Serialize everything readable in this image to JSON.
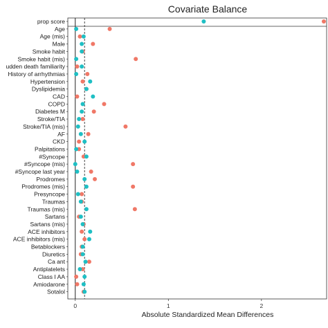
{
  "chart_data": {
    "type": "scatter",
    "title": "Covariate Balance",
    "xlabel": "Absolute Standardized Mean Differences",
    "ylabel": "",
    "xlim": [
      -0.08,
      2.7
    ],
    "x_ticks": [
      "0",
      "1",
      "2"
    ],
    "reference_lines": {
      "solid": 0,
      "dashed": 0.1
    },
    "colors": {
      "unadjusted": "#f07867",
      "adjusted": "#1fbfc4"
    },
    "categories": [
      "prop score",
      "Age",
      "Age (mis)",
      "Male",
      "Smoke habit",
      "Smoke habit (mis)",
      "udden death familiarity",
      "History of arrhythmias",
      "Hypertension",
      "Dyslipidemia",
      "CAD",
      "COPD",
      "Diabetes M",
      "Stroke/TIA",
      "Stroke/TIA (mis)",
      "AF",
      "CKD",
      "Palpitations",
      "#Syncope",
      "#Syncope (mis)",
      "#Syncope last year",
      "Prodromes",
      "Prodromes (mis)",
      "Presyncope",
      "Traumas",
      "Traumas (mis)",
      "Sartans",
      "Sartans (mis)",
      "ACE inhibitors",
      "ACE inhibitors (mis)",
      "Betablockers",
      "Diuretics",
      "Ca ant",
      "Antiplatelets",
      "Class I AA",
      "Amiodarone",
      "Sotalol"
    ],
    "series": [
      {
        "values": [
          2.67,
          0.37,
          0.05,
          0.19,
          0.08,
          0.65,
          0.02,
          0.13,
          0.08,
          0.12,
          0.02,
          0.31,
          0.2,
          0.08,
          0.54,
          0.14,
          0.04,
          0.04,
          0.09,
          0.62,
          0.17,
          0.21,
          0.62,
          0.07,
          0.07,
          0.64,
          0.04,
          0.09,
          0.07,
          0.1,
          0.07,
          0.06,
          0.15,
          0.08,
          0.01,
          0.02,
          0.09
        ]
      },
      {
        "values": [
          1.38,
          0.01,
          0.09,
          0.07,
          0.07,
          0.01,
          0.07,
          0.01,
          0.16,
          0.12,
          0.19,
          0.08,
          0.07,
          0.04,
          0.03,
          0.06,
          0.1,
          0.01,
          0.12,
          0.0,
          0.02,
          0.1,
          0.12,
          0.03,
          0.06,
          0.12,
          0.06,
          0.08,
          0.16,
          0.15,
          0.08,
          0.08,
          0.11,
          0.05,
          0.1,
          0.09,
          0.1
        ]
      }
    ]
  }
}
